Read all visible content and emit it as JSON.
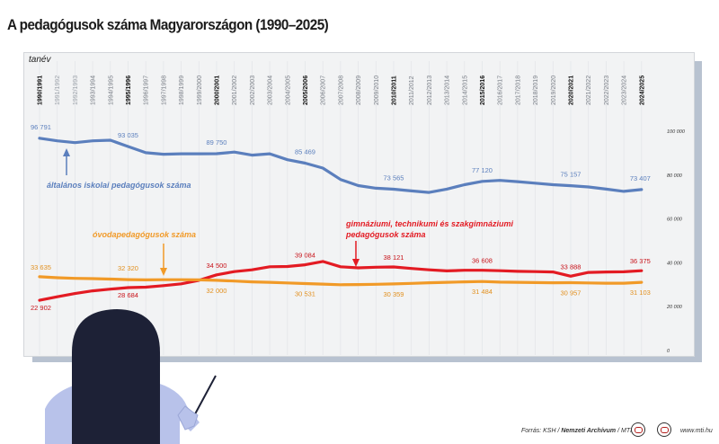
{
  "title": "A pedagógusok száma Magyarországon (1990–2025)",
  "source_prefix": "Forrás: KSH / ",
  "source_archive": "Nemzeti Archívum",
  "source_suffix": " / MTI",
  "website": "www.mti.hu",
  "colors": {
    "general": "#5b7fbd",
    "secondary": "#e31b23",
    "kindergarten": "#f19a28",
    "board": "#f2f3f4",
    "figure": "#1d2136"
  },
  "chart_data": {
    "type": "line",
    "title": "A pedagógusok száma Magyarországon (1990–2025)",
    "xlabel": "tanév",
    "ylabel": "",
    "ylim": [
      0,
      100000
    ],
    "yticks": [
      0,
      20000,
      40000,
      60000,
      80000,
      100000
    ],
    "ytick_labels": [
      "0",
      "20 000",
      "40 000",
      "60 000",
      "80 000",
      "100 000"
    ],
    "grid": "vertical",
    "categories": [
      "1990/1991",
      "1991/1992",
      "1992/1993",
      "1993/1994",
      "1994/1995",
      "1995/1996",
      "1996/1997",
      "1997/1998",
      "1998/1999",
      "1999/2000",
      "2000/2001",
      "2001/2002",
      "2002/2003",
      "2003/2004",
      "2004/2005",
      "2005/2006",
      "2006/2007",
      "2007/2008",
      "2008/2009",
      "2009/2010",
      "2010/2011",
      "2011/2012",
      "2012/2013",
      "2013/2014",
      "2014/2015",
      "2015/2016",
      "2016/2017",
      "2017/2018",
      "2018/2019",
      "2019/2020",
      "2020/2021",
      "2021/2022",
      "2022/2023",
      "2023/2024",
      "2024/2025"
    ],
    "bold_categories": [
      "1990/1991",
      "1995/1996",
      "2000/2001",
      "2005/2006",
      "2010/2011",
      "2015/2016",
      "2020/2021",
      "2024/2025"
    ],
    "gray_categories": [
      "1991/1992",
      "1992/1993"
    ],
    "series": [
      {
        "key": "general",
        "name": "általános iskolai pedagógusok száma",
        "color": "#5b7fbd",
        "values": [
          96791,
          95600,
          94800,
          95600,
          95900,
          93035,
          90200,
          89500,
          89700,
          89700,
          89750,
          90500,
          89100,
          89700,
          87000,
          85469,
          83200,
          78000,
          75200,
          74000,
          73565,
          72800,
          72100,
          73600,
          75600,
          77120,
          77600,
          77000,
          76300,
          75600,
          75157,
          74600,
          73600,
          72600,
          73407
        ]
      },
      {
        "key": "secondary",
        "name": "gimnáziumi, technikumi és szakgimnáziumi pedagógusok száma",
        "color": "#e31b23",
        "values": [
          22902,
          24500,
          26000,
          27200,
          28000,
          28684,
          28900,
          29600,
          30400,
          32000,
          34500,
          36000,
          36800,
          38200,
          38300,
          39084,
          40600,
          38200,
          37700,
          38000,
          38121,
          37400,
          36800,
          36300,
          36600,
          36608,
          36400,
          36100,
          36000,
          35800,
          33888,
          35600,
          35800,
          35900,
          36375
        ]
      },
      {
        "key": "kindergarten",
        "name": "óvodapedagógusok száma",
        "color": "#f19a28",
        "values": [
          33635,
          33200,
          32900,
          32800,
          32600,
          32320,
          32200,
          32300,
          32300,
          32200,
          32000,
          31700,
          31300,
          31100,
          30800,
          30531,
          30300,
          30000,
          30100,
          30200,
          30359,
          30600,
          30900,
          31100,
          31300,
          31484,
          31200,
          31100,
          31000,
          30900,
          30957,
          30800,
          30700,
          30700,
          31103
        ]
      }
    ],
    "data_labels": [
      {
        "series": "general",
        "index": 0,
        "text": "96 791"
      },
      {
        "series": "general",
        "index": 5,
        "text": "93 035"
      },
      {
        "series": "general",
        "index": 10,
        "text": "89 750"
      },
      {
        "series": "general",
        "index": 15,
        "text": "85 469"
      },
      {
        "series": "general",
        "index": 20,
        "text": "73 565"
      },
      {
        "series": "general",
        "index": 25,
        "text": "77 120"
      },
      {
        "series": "general",
        "index": 30,
        "text": "75 157"
      },
      {
        "series": "general",
        "index": 34,
        "text": "73 407"
      },
      {
        "series": "secondary",
        "index": 0,
        "text": "22 902"
      },
      {
        "series": "secondary",
        "index": 5,
        "text": "28 684"
      },
      {
        "series": "secondary",
        "index": 10,
        "text": "34 500"
      },
      {
        "series": "secondary",
        "index": 15,
        "text": "39 084"
      },
      {
        "series": "secondary",
        "index": 20,
        "text": "38 121"
      },
      {
        "series": "secondary",
        "index": 25,
        "text": "36 608"
      },
      {
        "series": "secondary",
        "index": 30,
        "text": "33 888"
      },
      {
        "series": "secondary",
        "index": 34,
        "text": "36 375"
      },
      {
        "series": "kindergarten",
        "index": 0,
        "text": "33 635"
      },
      {
        "series": "kindergarten",
        "index": 5,
        "text": "32 320"
      },
      {
        "series": "kindergarten",
        "index": 10,
        "text": "32 000"
      },
      {
        "series": "kindergarten",
        "index": 15,
        "text": "30 531"
      },
      {
        "series": "kindergarten",
        "index": 20,
        "text": "30 359"
      },
      {
        "series": "kindergarten",
        "index": 25,
        "text": "31 484"
      },
      {
        "series": "kindergarten",
        "index": 30,
        "text": "30 957"
      },
      {
        "series": "kindergarten",
        "index": 34,
        "text": "31 103"
      }
    ],
    "legend": "inline annotations with arrows"
  }
}
